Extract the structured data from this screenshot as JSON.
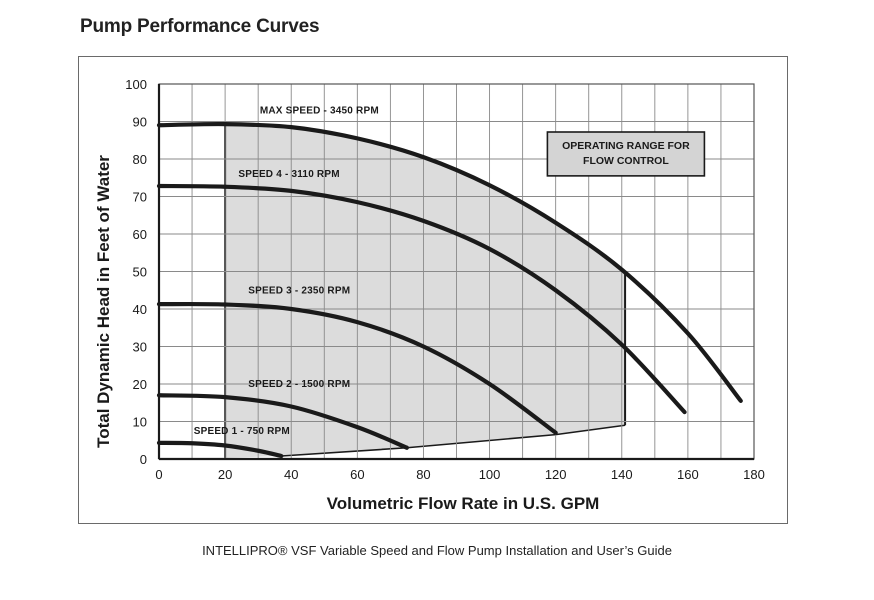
{
  "page": {
    "title": "Pump Performance Curves",
    "footer": "INTELLIPRO® VSF Variable Speed and Flow Pump Installation and User’s Guide"
  },
  "chart_data": {
    "type": "line",
    "title": "Pump Performance Curves",
    "xlabel": "Volumetric Flow Rate in U.S. GPM",
    "ylabel": "Total Dynamic Head in Feet of Water",
    "xlim": [
      0,
      180
    ],
    "ylim": [
      0,
      100
    ],
    "xticks": [
      0,
      20,
      40,
      60,
      80,
      100,
      120,
      140,
      160,
      180
    ],
    "yticks": [
      0,
      10,
      20,
      30,
      40,
      50,
      60,
      70,
      80,
      90,
      100
    ],
    "grid": true,
    "series": [
      {
        "name": "MAX SPEED - 3450 RPM",
        "x": [
          0,
          20,
          40,
          60,
          80,
          100,
          120,
          140,
          160,
          176
        ],
        "y": [
          89,
          89.3,
          88.5,
          85.5,
          80.5,
          73,
          63,
          50.5,
          33.5,
          15.5
        ]
      },
      {
        "name": "SPEED 4 - 3110 RPM",
        "x": [
          0,
          20,
          40,
          60,
          80,
          100,
          120,
          140,
          159
        ],
        "y": [
          72.8,
          72.6,
          71.5,
          68.5,
          63.5,
          56,
          45,
          30.5,
          12.5
        ]
      },
      {
        "name": "SPEED 3 - 2350 RPM",
        "x": [
          0,
          20,
          40,
          60,
          80,
          100,
          120
        ],
        "y": [
          41.3,
          41.2,
          40,
          36.5,
          30,
          20,
          7
        ]
      },
      {
        "name": "SPEED 2 - 1500 RPM",
        "x": [
          0,
          20,
          40,
          60,
          75
        ],
        "y": [
          17,
          16.5,
          14,
          8.5,
          3
        ]
      },
      {
        "name": "SPEED 1 - 750 RPM",
        "x": [
          0,
          10,
          20,
          30,
          37
        ],
        "y": [
          4.3,
          4.2,
          3.6,
          2.2,
          0.8
        ]
      }
    ],
    "operating_range": {
      "label": [
        "OPERATING RANGE FOR",
        "FLOW CONTROL"
      ],
      "boundary_x": [
        20,
        20,
        30,
        40,
        60,
        80,
        100,
        120,
        140,
        141,
        141,
        120,
        75,
        37,
        20
      ],
      "boundary_y": [
        89.3,
        89.2,
        89,
        88.5,
        85.5,
        80.5,
        73,
        63,
        50.5,
        49.5,
        9,
        6.5,
        3,
        0.8,
        0.3
      ]
    }
  }
}
